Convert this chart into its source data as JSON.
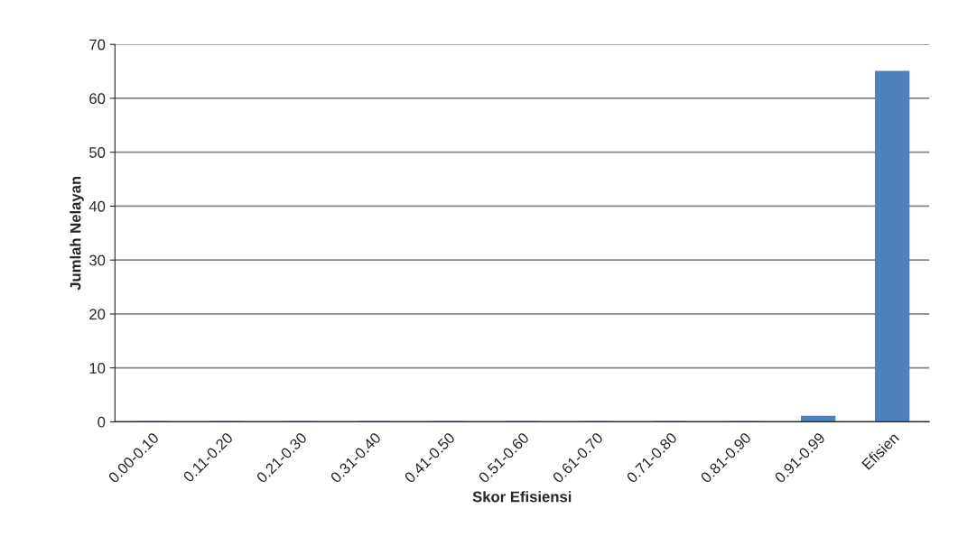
{
  "chart_data": {
    "type": "bar",
    "xlabel": "Skor Efisiensi",
    "ylabel": "Jumlah Nelayan",
    "categories": [
      "0.00-0.10",
      "0.11-0.20",
      "0.21-0.30",
      "0.31-0.40",
      "0.41-0.50",
      "0.51-0.60",
      "0.61-0.70",
      "0.71-0.80",
      "0.81-0.90",
      "0.91-0.99",
      "Efisien"
    ],
    "values": [
      0,
      0,
      0,
      0,
      0,
      0,
      0,
      0,
      0,
      1,
      65
    ],
    "color": "#4f81bd",
    "ylim": [
      0,
      70
    ],
    "yticks": [
      0,
      10,
      20,
      30,
      40,
      50,
      60,
      70
    ],
    "grid": "y"
  }
}
